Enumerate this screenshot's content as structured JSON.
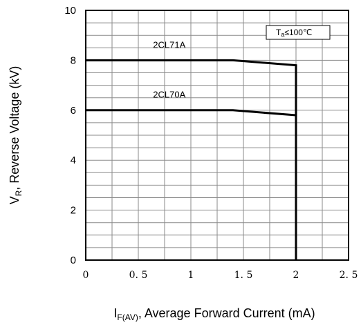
{
  "chart_data": {
    "type": "line",
    "xlabel_main": "I",
    "xlabel_sub": "F(AV)",
    "xlabel_rest": ", Average Forward Current (mA)",
    "ylabel_main": "V",
    "ylabel_sub": "R",
    "ylabel_rest": ", Reverse Voltage (kV)",
    "xlim": [
      0,
      2.5
    ],
    "ylim": [
      0,
      10
    ],
    "grid": true,
    "x_ticks": [
      0,
      0.5,
      1,
      1.5,
      2,
      2.5
    ],
    "x_tick_labels": [
      "0",
      "0. 5",
      "1",
      "1. 5",
      "2",
      "2. 5"
    ],
    "y_ticks": [
      0,
      2,
      4,
      6,
      8,
      10
    ],
    "y_tick_labels": [
      "0",
      "2",
      "4",
      "6",
      "8",
      "10"
    ],
    "series": [
      {
        "name": "2CL71A",
        "x": [
          0,
          1.4,
          2.0,
          2.0
        ],
        "y": [
          8.0,
          8.0,
          7.8,
          0
        ]
      },
      {
        "name": "2CL70A",
        "x": [
          0,
          1.4,
          2.0
        ],
        "y": [
          6.0,
          6.0,
          5.8
        ]
      }
    ],
    "annotation": {
      "text_main": "T",
      "text_sub": "a",
      "text_rest": "≤100℃"
    }
  }
}
